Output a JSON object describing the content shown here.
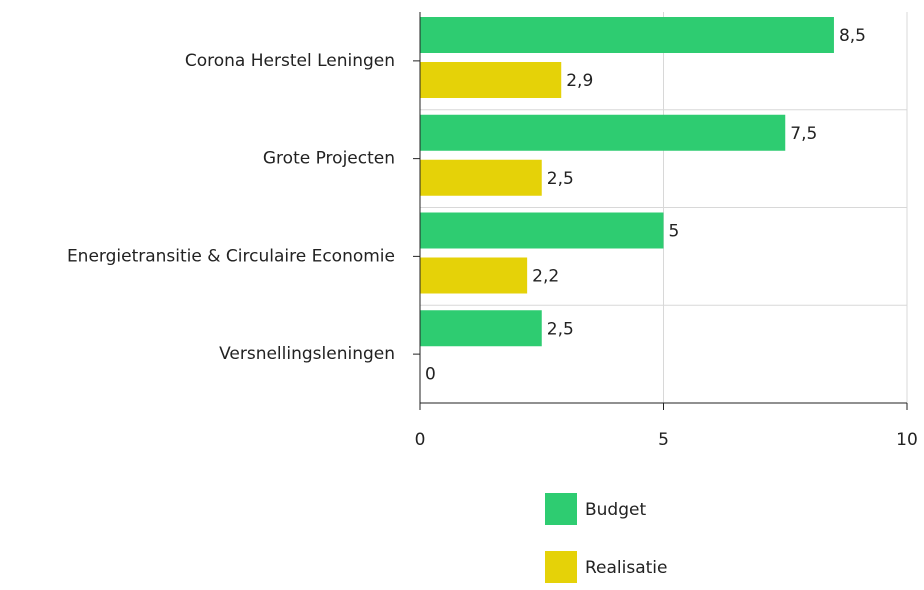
{
  "chart_data": {
    "type": "hbar",
    "categories": [
      "Corona Herstel Leningen",
      "Grote Projecten",
      "Energietransitie & Circulaire Economie",
      "Versnellingsleningen"
    ],
    "series": [
      {
        "name": "Budget",
        "color": "#2ecc71",
        "values": [
          8.5,
          7.5,
          5,
          2.5
        ],
        "value_labels": [
          "8,5",
          "7,5",
          "5",
          "2,5"
        ]
      },
      {
        "name": "Realisatie",
        "color": "#e5d208",
        "values": [
          2.9,
          2.5,
          2.2,
          0
        ],
        "value_labels": [
          "2,9",
          "2,5",
          "2,2",
          "0"
        ]
      }
    ],
    "xlim": [
      0,
      10
    ],
    "xticks": [
      0,
      5,
      10
    ],
    "grid": true,
    "legend": "bottom"
  }
}
